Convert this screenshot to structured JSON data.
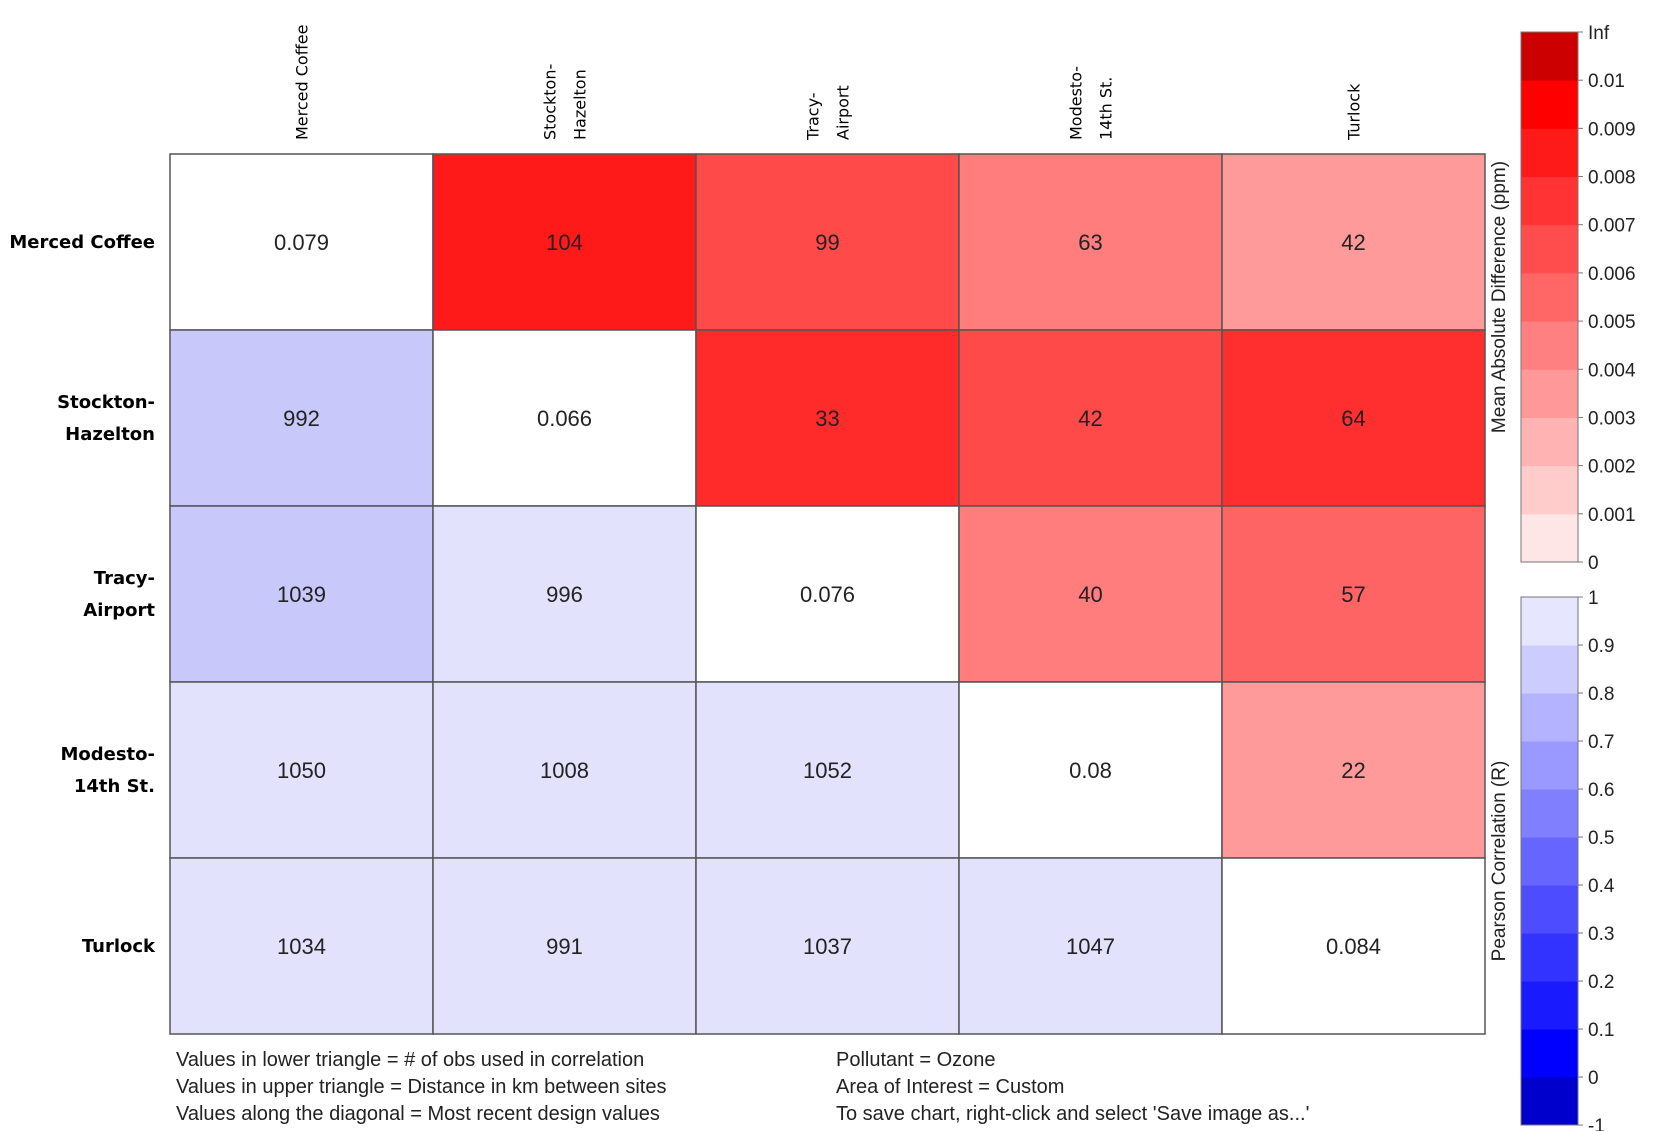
{
  "chart_data": {
    "type": "heatmap",
    "row_labels": [
      [
        "Merced Coffee"
      ],
      [
        "Stockton-",
        "Hazelton"
      ],
      [
        "Tracy-",
        "Airport"
      ],
      [
        "Modesto-",
        "14th St."
      ],
      [
        "Turlock"
      ]
    ],
    "col_labels": [
      [
        "Merced Coffee"
      ],
      [
        "Stockton-",
        "Hazelton"
      ],
      [
        "Tracy-",
        "Airport"
      ],
      [
        "Modesto-",
        "14th St."
      ],
      [
        "Turlock"
      ]
    ],
    "values": [
      [
        "0.079",
        "104",
        "99",
        "63",
        "42"
      ],
      [
        "992",
        "0.066",
        "33",
        "42",
        "64"
      ],
      [
        "1039",
        "996",
        "0.076",
        "40",
        "57"
      ],
      [
        "1050",
        "1008",
        "1052",
        "0.08",
        "22"
      ],
      [
        "1034",
        "991",
        "1037",
        "1047",
        "0.084"
      ]
    ],
    "upper_colors": [
      [
        null,
        "#ff1a1a",
        "#ff4a4a",
        "#ff7d7d",
        "#ff9a9a"
      ],
      [
        null,
        null,
        "#ff2a2a",
        "#ff4a4a",
        "#ff2f2f"
      ],
      [
        null,
        null,
        null,
        "#ff7d7d",
        "#ff6464"
      ],
      [
        null,
        null,
        null,
        null,
        "#ff9a9a"
      ]
    ],
    "lower_colors": [
      [],
      [
        "#c8c8fb"
      ],
      [
        "#c8c8fb",
        "#e2e2fd"
      ],
      [
        "#e2e2fd",
        "#e2e2fd",
        "#e2e2fd"
      ],
      [
        "#e2e2fd",
        "#e2e2fd",
        "#e2e2fd",
        "#e2e2fd"
      ]
    ],
    "diagonal_color": "#ffffff",
    "colorbar_mad": {
      "title": "Mean Absolute Difference (ppm)",
      "ticks": [
        "0",
        "0.001",
        "0.002",
        "0.003",
        "0.004",
        "0.005",
        "0.006",
        "0.007",
        "0.008",
        "0.009",
        "0.01",
        "Inf"
      ],
      "colors": [
        "#ffe6e6",
        "#ffcccc",
        "#ffb3b3",
        "#ff9999",
        "#ff8080",
        "#ff6666",
        "#ff4d4d",
        "#ff3333",
        "#ff1a1a",
        "#ff0000",
        "#cc0000"
      ]
    },
    "colorbar_r": {
      "title": "Pearson Correlation (R)",
      "ticks": [
        "-1",
        "0",
        "0.1",
        "0.2",
        "0.3",
        "0.4",
        "0.5",
        "0.6",
        "0.7",
        "0.8",
        "0.9",
        "1"
      ],
      "colors": [
        "#0000cc",
        "#0000ff",
        "#1a1aff",
        "#3333ff",
        "#4d4dff",
        "#6666ff",
        "#8080ff",
        "#9999ff",
        "#b3b3ff",
        "#ccccff",
        "#e6e6ff"
      ]
    }
  },
  "notes_left": [
    "Values in lower triangle = # of obs used in correlation",
    "Values in upper triangle = Distance in km between sites",
    "Values along the diagonal = Most recent design values"
  ],
  "notes_right": [
    "Pollutant = Ozone",
    "Area of Interest = Custom",
    "To save chart, right-click and select 'Save image as...'"
  ]
}
